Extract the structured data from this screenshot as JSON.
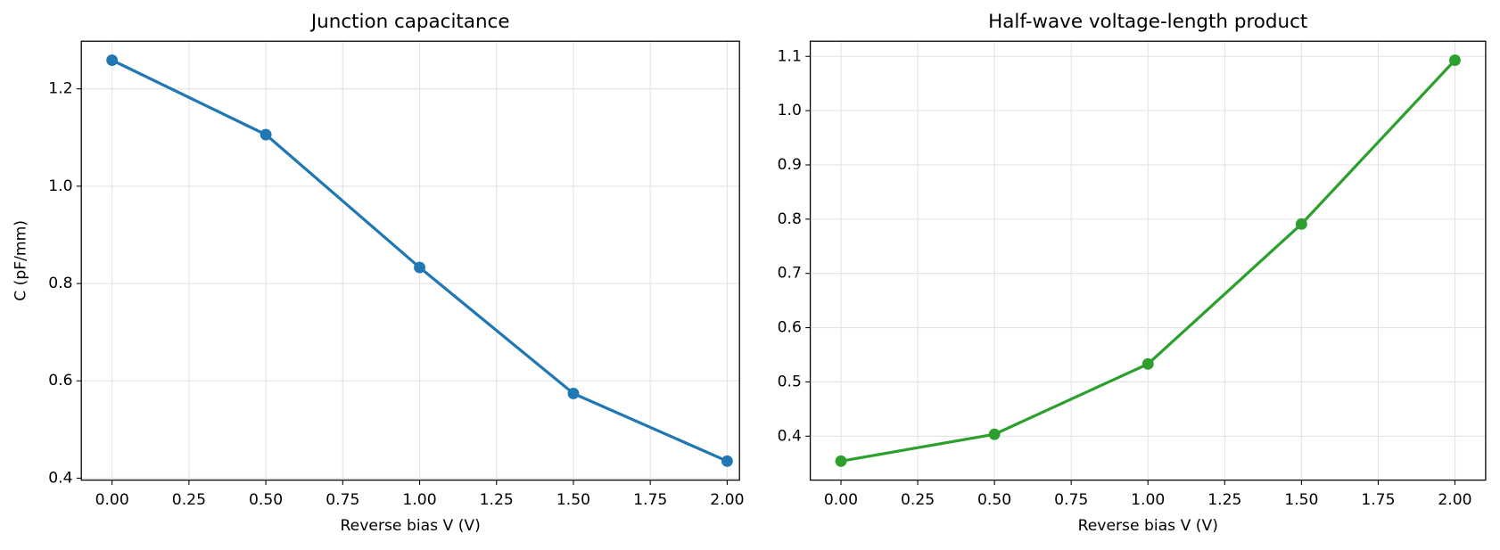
{
  "chart_data": [
    {
      "type": "line",
      "title": "Junction capacitance",
      "xlabel": "Reverse bias V (V)",
      "ylabel": "C (pF/mm)",
      "x": [
        0,
        0.5,
        1,
        1.5,
        2
      ],
      "series": [
        {
          "color": "#1f77b4",
          "values": [
            1.259,
            1.106,
            0.833,
            0.574,
            0.435
          ]
        }
      ],
      "xlim": [
        -0.1,
        2.04
      ],
      "ylim": [
        0.396,
        1.298
      ],
      "xticks": [
        {
          "value": 0,
          "label": "0.00"
        },
        {
          "value": 0.25,
          "label": "0.25"
        },
        {
          "value": 0.5,
          "label": "0.50"
        },
        {
          "value": 0.75,
          "label": "0.75"
        },
        {
          "value": 1,
          "label": "1.00"
        },
        {
          "value": 1.25,
          "label": "1.25"
        },
        {
          "value": 1.5,
          "label": "1.50"
        },
        {
          "value": 1.75,
          "label": "1.75"
        },
        {
          "value": 2,
          "label": "2.00"
        }
      ],
      "yticks": [
        0.4,
        0.6,
        0.8,
        {
          "value": 1,
          "label": "1.0"
        },
        1.2
      ],
      "grid": true
    },
    {
      "type": "line",
      "title": "Half-wave voltage-length product",
      "xlabel": "Reverse bias V (V)",
      "x": [
        0,
        0.5,
        1,
        1.5,
        2
      ],
      "series": [
        {
          "color": "#2ca02c",
          "values": [
            0.354,
            0.4035,
            0.533,
            0.791,
            1.093
          ]
        }
      ],
      "xlim": [
        -0.1,
        2.1
      ],
      "ylim": [
        0.319,
        1.128
      ],
      "xticks": [
        {
          "value": 0,
          "label": "0.00"
        },
        {
          "value": 0.25,
          "label": "0.25"
        },
        {
          "value": 0.5,
          "label": "0.50"
        },
        {
          "value": 0.75,
          "label": "0.75"
        },
        {
          "value": 1,
          "label": "1.00"
        },
        {
          "value": 1.25,
          "label": "1.25"
        },
        {
          "value": 1.5,
          "label": "1.50"
        },
        {
          "value": 1.75,
          "label": "1.75"
        },
        {
          "value": 2,
          "label": "2.00"
        }
      ],
      "yticks": [
        0.4,
        0.5,
        0.6,
        0.7,
        0.8,
        0.9,
        {
          "value": 1,
          "label": "1.0"
        },
        1.1
      ],
      "grid": true
    }
  ]
}
